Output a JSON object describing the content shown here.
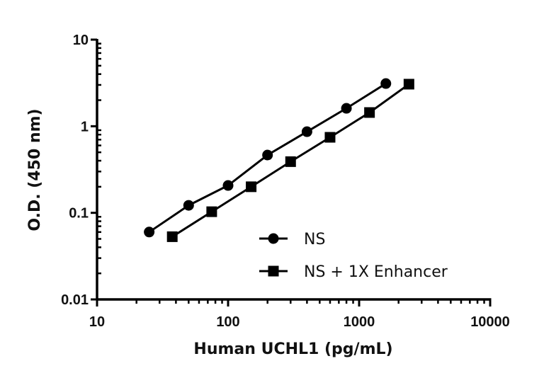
{
  "chart_data": {
    "type": "scatter",
    "title": "",
    "xlabel": "Human UCHL1 (pg/mL)",
    "ylabel": "O.D. (450 nm)",
    "xscale": "log",
    "yscale": "log",
    "xlim": [
      10,
      10000
    ],
    "ylim": [
      0.01,
      10
    ],
    "x_ticks": [
      "10",
      "100",
      "1000",
      "10000"
    ],
    "y_ticks": [
      "0.01",
      "0.1",
      "1",
      "10"
    ],
    "grid": false,
    "legend_position": "lower right (inside plot)",
    "series": [
      {
        "name": "NS",
        "marker": "circle",
        "line": "solid",
        "color": "#000000",
        "x": [
          25,
          50,
          100,
          200,
          400,
          800,
          1600
        ],
        "y": [
          0.06,
          0.122,
          0.207,
          0.465,
          0.865,
          1.61,
          3.11
        ]
      },
      {
        "name": "NS + 1X Enhancer",
        "marker": "square",
        "line": "solid",
        "color": "#000000",
        "x": [
          37.5,
          75,
          150,
          300,
          600,
          1200,
          2400
        ],
        "y": [
          0.053,
          0.103,
          0.2,
          0.39,
          0.745,
          1.44,
          3.06
        ]
      }
    ]
  },
  "legend": {
    "items": [
      {
        "label": "NS",
        "marker": "circle-marker-icon"
      },
      {
        "label": "NS + 1X Enhancer",
        "marker": "square-marker-icon"
      }
    ]
  },
  "axes": {
    "x_title": "Human UCHL1 (pg/mL)",
    "y_title": "O.D. (450 nm)"
  }
}
